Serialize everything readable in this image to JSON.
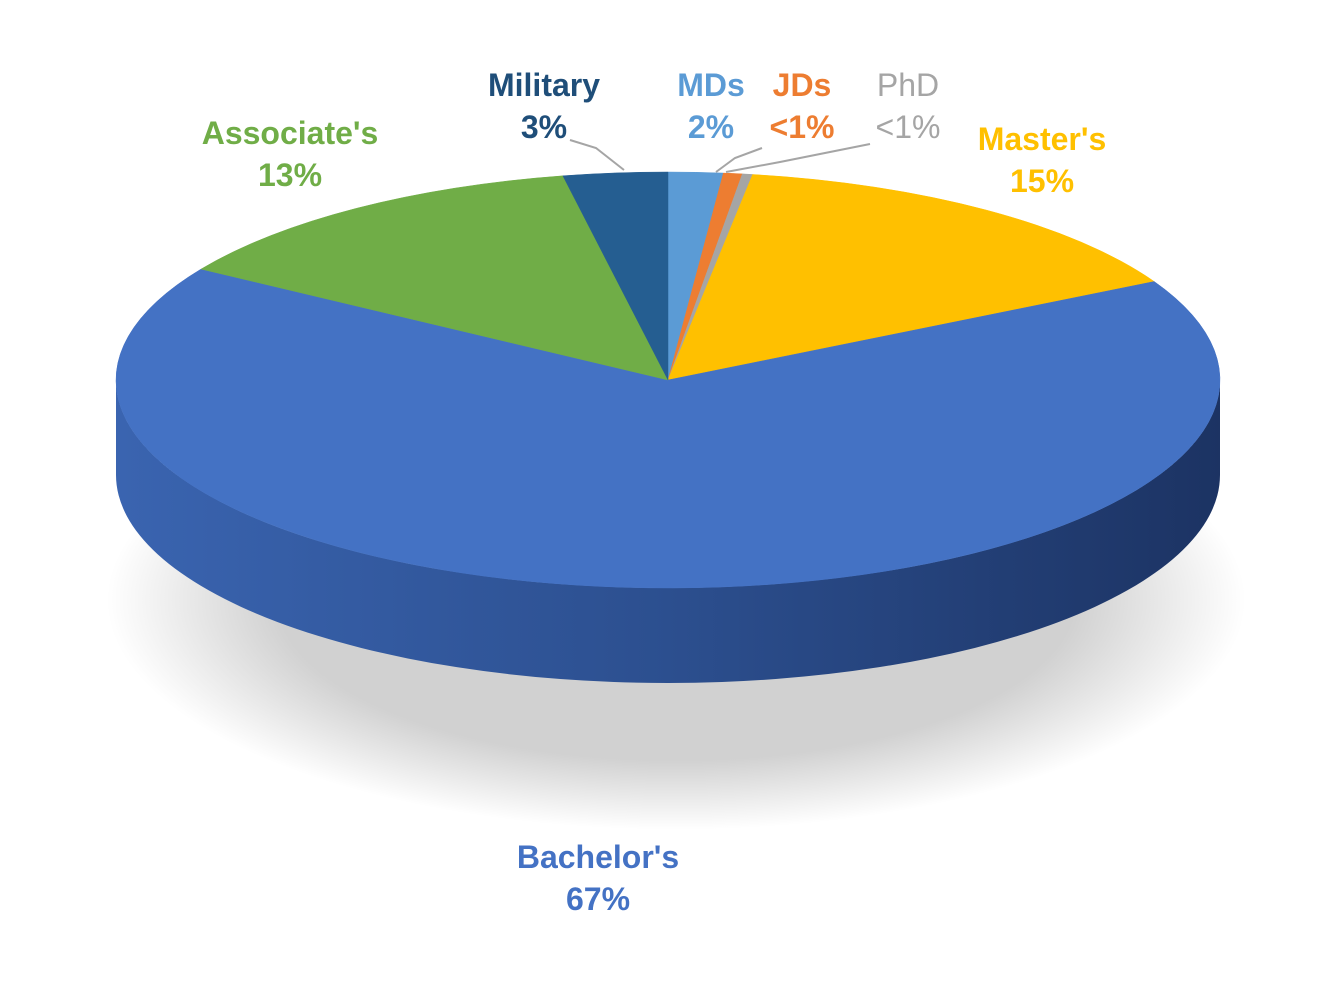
{
  "chart_data": {
    "type": "pie",
    "title": "",
    "slices": [
      {
        "label": "MDs",
        "value_label": "2%",
        "value": 1.6,
        "color": "#5b9bd5"
      },
      {
        "label": "JDs",
        "value_label": "<1%",
        "value": 0.55,
        "color": "#ed7d31"
      },
      {
        "label": "PhD",
        "value_label": "<1%",
        "value": 0.3,
        "color": "#a5a5a5"
      },
      {
        "label": "Master's",
        "value_label": "15%",
        "value": 14.7,
        "color": "#ffc000"
      },
      {
        "label": "Bachelor's",
        "value_label": "67%",
        "value": 66.8,
        "color": "#4472c4"
      },
      {
        "label": "Associate's",
        "value_label": "13%",
        "value": 13.0,
        "color": "#70ad47"
      },
      {
        "label": "Military",
        "value_label": "3%",
        "value": 3.05,
        "color": "#255e91"
      }
    ],
    "labels": {
      "military": {
        "name": "Military",
        "value": "3%"
      },
      "mds": {
        "name": "MDs",
        "value": "2%"
      },
      "jds": {
        "name": "JDs",
        "value": "<1%"
      },
      "phd": {
        "name": "PhD",
        "value": "<1%"
      },
      "masters": {
        "name": "Master's",
        "value": "15%"
      },
      "associates": {
        "name": "Associate's",
        "value": "13%"
      },
      "bachelors": {
        "name": "Bachelor's",
        "value": "67%"
      }
    },
    "label_colors": {
      "military": "#1f4e79",
      "mds": "#5b9bd5",
      "jds": "#ed7d31",
      "phd": "#a5a5a5",
      "masters": "#ffc000",
      "associates": "#70ad47",
      "bachelors": "#4472c4"
    }
  }
}
